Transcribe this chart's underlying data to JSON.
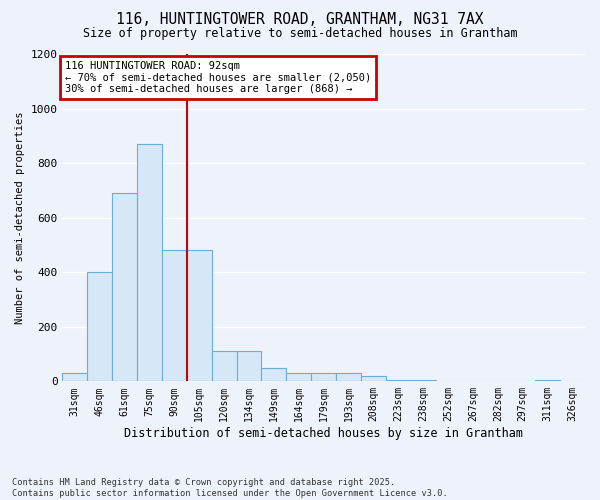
{
  "title_line1": "116, HUNTINGTOWER ROAD, GRANTHAM, NG31 7AX",
  "title_line2": "Size of property relative to semi-detached houses in Grantham",
  "xlabel": "Distribution of semi-detached houses by size in Grantham",
  "ylabel": "Number of semi-detached properties",
  "categories": [
    "31sqm",
    "46sqm",
    "61sqm",
    "75sqm",
    "90sqm",
    "105sqm",
    "120sqm",
    "134sqm",
    "149sqm",
    "164sqm",
    "179sqm",
    "193sqm",
    "208sqm",
    "223sqm",
    "238sqm",
    "252sqm",
    "267sqm",
    "282sqm",
    "297sqm",
    "311sqm",
    "326sqm"
  ],
  "values": [
    30,
    400,
    690,
    870,
    480,
    480,
    110,
    110,
    50,
    30,
    30,
    30,
    20,
    5,
    5,
    3,
    3,
    2,
    2,
    5,
    2
  ],
  "bar_color": "#d6e8f7",
  "bar_edge_color": "#6aaed6",
  "property_line_index": 4,
  "annotation_text_line1": "116 HUNTINGTOWER ROAD: 92sqm",
  "annotation_text_line2": "← 70% of semi-detached houses are smaller (2,050)",
  "annotation_text_line3": "30% of semi-detached houses are larger (868) →",
  "ylim": [
    0,
    1200
  ],
  "yticks": [
    0,
    200,
    400,
    600,
    800,
    1000,
    1200
  ],
  "footnote_line1": "Contains HM Land Registry data © Crown copyright and database right 2025.",
  "footnote_line2": "Contains public sector information licensed under the Open Government Licence v3.0.",
  "bg_color": "#eef2fb",
  "grid_color": "#ffffff",
  "annotation_box_color": "#ffffff",
  "annotation_box_edge_color": "#cc0000",
  "line_color": "#cc0000"
}
